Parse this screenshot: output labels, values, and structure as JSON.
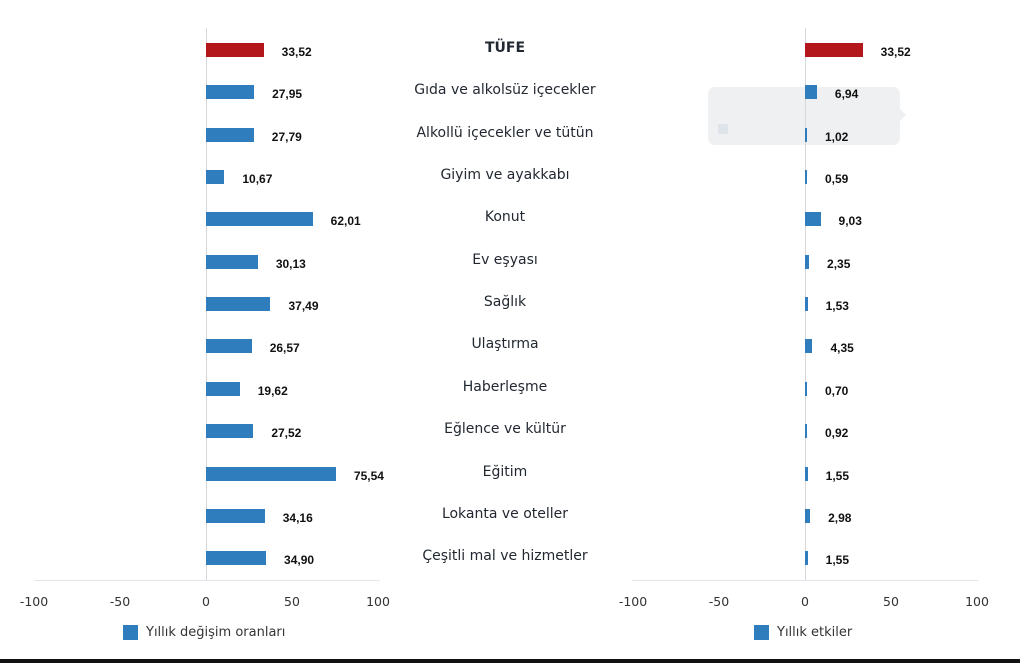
{
  "colors": {
    "highlight": "#b3161b",
    "series": "#2f7dbd",
    "text": "#111111",
    "category_text": "#222831",
    "axis": "#e3e6ea"
  },
  "categories": [
    "TÜFE",
    "Gıda ve alkolsüz içecekler",
    "Alkollü içecekler ve tütün",
    "Giyim ve ayakkabı",
    "Konut",
    "Ev eşyası",
    "Sağlık",
    "Ulaştırma",
    "Haberleşme",
    "Eğlence ve kültür",
    "Eğitim",
    "Lokanta ve oteller",
    "Çeşitli mal ve hizmetler"
  ],
  "left_chart": {
    "legend": "Yıllık değişim oranları",
    "labels": [
      "33,52",
      "27,95",
      "27,79",
      "10,67",
      "62,01",
      "30,13",
      "37,49",
      "26,57",
      "19,62",
      "27,52",
      "75,54",
      "34,16",
      "34,90"
    ],
    "ticks": [
      "-100",
      "-50",
      "0",
      "50",
      "100"
    ]
  },
  "right_chart": {
    "legend": "Yıllık etkiler",
    "labels": [
      "33,52",
      "6,94",
      "1,02",
      "0,59",
      "9,03",
      "2,35",
      "1,53",
      "4,35",
      "0,70",
      "0,92",
      "1,55",
      "2,98",
      "1,55"
    ],
    "ticks": [
      "-100",
      "-50",
      "0",
      "50",
      "100"
    ]
  },
  "chart_data": [
    {
      "type": "bar",
      "orientation": "horizontal",
      "title": "",
      "xlabel": "",
      "ylabel": "",
      "xlim": [
        -100,
        100
      ],
      "x_ticks": [
        -100,
        -50,
        0,
        50,
        100
      ],
      "grid": false,
      "legend_position": "bottom",
      "categories": [
        "TÜFE",
        "Gıda ve alkolsüz içecekler",
        "Alkollü içecekler ve tütün",
        "Giyim ve ayakkabı",
        "Konut",
        "Ev eşyası",
        "Sağlık",
        "Ulaştırma",
        "Haberleşme",
        "Eğlence ve kültür",
        "Eğitim",
        "Lokanta ve oteller",
        "Çeşitli mal ve hizmetler"
      ],
      "series": [
        {
          "name": "Yıllık değişim oranları",
          "values": [
            33.52,
            27.95,
            27.79,
            10.67,
            62.01,
            30.13,
            37.49,
            26.57,
            19.62,
            27.52,
            75.54,
            34.16,
            34.9
          ]
        }
      ],
      "highlight": {
        "category": "TÜFE",
        "color": "#b3161b"
      }
    },
    {
      "type": "bar",
      "orientation": "horizontal",
      "title": "",
      "xlabel": "",
      "ylabel": "",
      "xlim": [
        -100,
        100
      ],
      "x_ticks": [
        -100,
        -50,
        0,
        50,
        100
      ],
      "grid": false,
      "legend_position": "bottom",
      "categories": [
        "TÜFE",
        "Gıda ve alkolsüz içecekler",
        "Alkollü içecekler ve tütün",
        "Giyim ve ayakkabı",
        "Konut",
        "Ev eşyası",
        "Sağlık",
        "Ulaştırma",
        "Haberleşme",
        "Eğlence ve kültür",
        "Eğitim",
        "Lokanta ve oteller",
        "Çeşitli mal ve hizmetler"
      ],
      "series": [
        {
          "name": "Yıllık etkiler",
          "values": [
            33.52,
            6.94,
            1.02,
            0.59,
            9.03,
            2.35,
            1.53,
            4.35,
            0.7,
            0.92,
            1.55,
            2.98,
            1.55
          ]
        }
      ],
      "highlight": {
        "category": "TÜFE",
        "color": "#b3161b"
      }
    }
  ]
}
